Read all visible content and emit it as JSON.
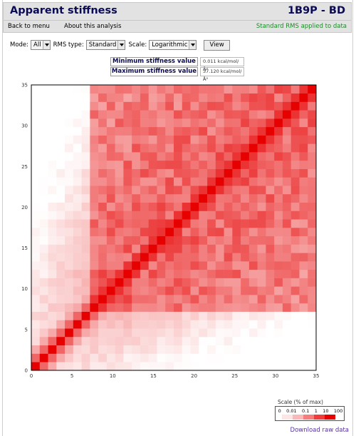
{
  "header": {
    "title": "Apparent stiffness",
    "pdb_code": "1B9P",
    "chain_suffix": " - BD"
  },
  "menu": {
    "back_label": "Back to menu",
    "about_label": "About this analysis",
    "status_text": "Standard RMS applied to data"
  },
  "controls": {
    "mode_label": "Mode:",
    "mode_value": "All",
    "rms_label": "RMS type:",
    "rms_value": "Standard",
    "scale_label": "Scale:",
    "scale_value": "Logarithmic",
    "view_button": "View"
  },
  "stiffness": {
    "min_label": "Minimum stiffness value",
    "min_value": "0.011 kcal/mol/Å²",
    "max_label": "Maximum stiffness value",
    "max_value": "37.120 kcal/mol/Å²"
  },
  "legend": {
    "title": "Scale (% of max)",
    "labels": [
      "0",
      "0.01",
      "0.1",
      "1",
      "10",
      "100"
    ],
    "colors": [
      "#ffffff",
      "#fde5e5",
      "#fbb8b8",
      "#f77d7d",
      "#f23c3c",
      "#e60000"
    ]
  },
  "download_label": "Download raw data",
  "chart_data": {
    "type": "heatmap",
    "x_ticks": [
      "0",
      "5",
      "10",
      "15",
      "20",
      "25",
      "30",
      "35"
    ],
    "y_ticks": [
      "0",
      "5",
      "10",
      "15",
      "20",
      "25",
      "30",
      "35"
    ],
    "xlim": [
      0,
      35
    ],
    "ylim": [
      0,
      35
    ],
    "n_residues": 34,
    "base_color": "#e60000",
    "colors": {
      "tick_text": "#333333"
    }
  }
}
